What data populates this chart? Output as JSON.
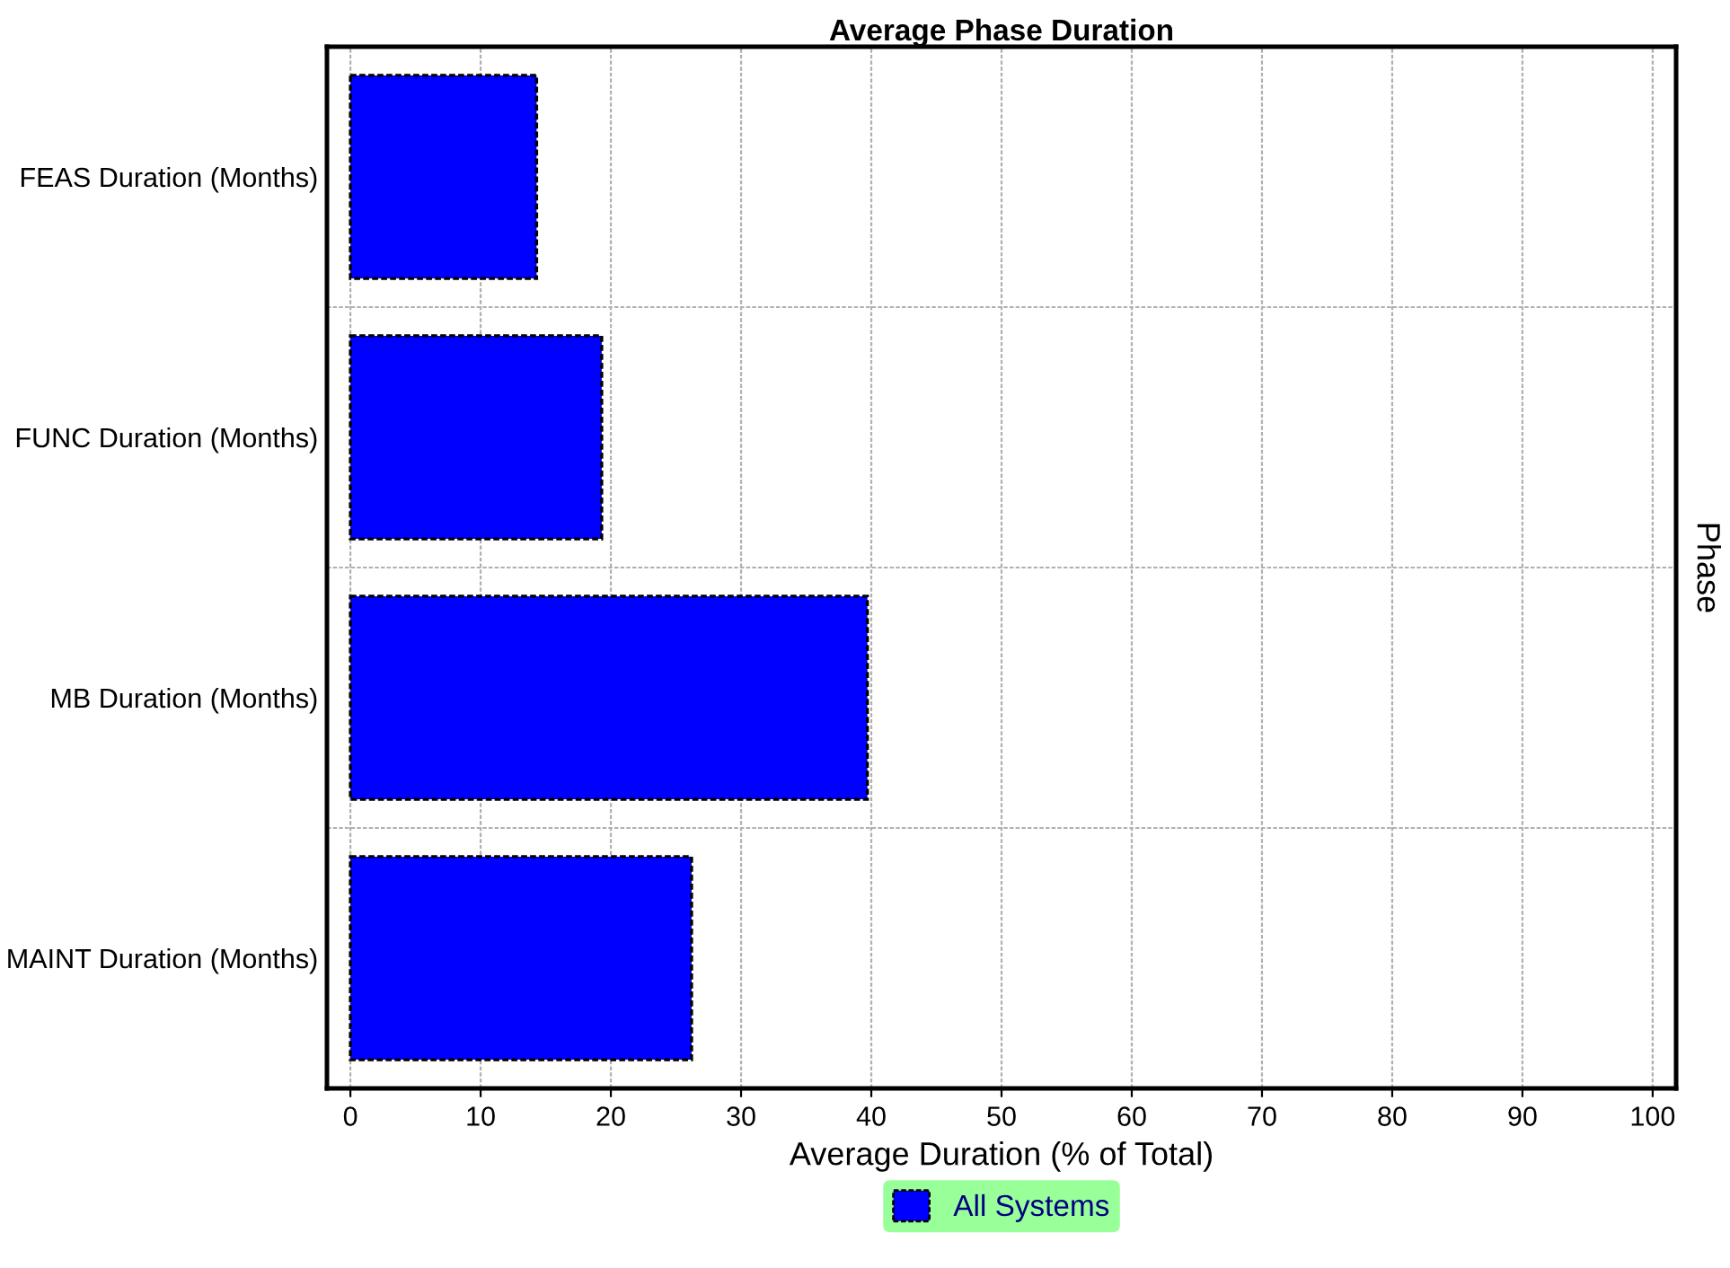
{
  "chart_data": {
    "type": "bar",
    "orientation": "horizontal",
    "title": "Average Phase Duration",
    "xlabel": "Average Duration (% of Total)",
    "y2label": "Phase",
    "categories": [
      "FEAS Duration (Months)",
      "FUNC Duration (Months)",
      "MB Duration (Months)",
      "MAINT Duration (Months)"
    ],
    "series": [
      {
        "name": "All Systems",
        "color": "#0000ff",
        "values": [
          14.3,
          19.3,
          39.7,
          26.2
        ]
      }
    ],
    "xlim": [
      -1.8,
      101.8
    ],
    "xticks": [
      0,
      10,
      20,
      30,
      40,
      50,
      60,
      70,
      80,
      90,
      100
    ],
    "grid": true,
    "legend": "bottom"
  }
}
